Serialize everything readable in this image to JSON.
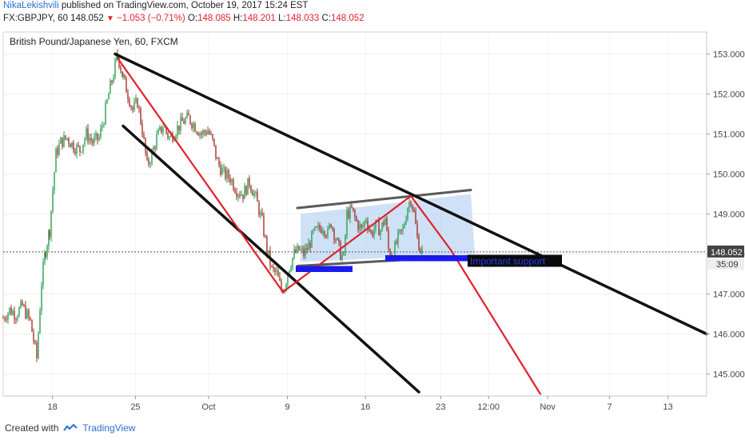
{
  "header": {
    "author": "NikaLekishvili",
    "published_text": "published on TradingView.com, October 19, 2017 15:24 EST",
    "symbol": "FX:GBPJPY, 60",
    "last": "148.052",
    "change": "−1.053 (−0.71%)",
    "open_label": "O:",
    "open": "148.085",
    "high_label": "H:",
    "high": "148.201",
    "low_label": "L:",
    "low": "148.033",
    "close_label": "C:",
    "close": "148.052"
  },
  "chart_data": {
    "type": "candlestick",
    "title": "British Pound/Japanese Yen, 60, FXCM",
    "ylim": [
      144.45,
      153.55
    ],
    "y_ticks": [
      "145.000",
      "146.000",
      "147.000",
      "148.000",
      "149.000",
      "150.000",
      "151.000",
      "152.000",
      "153.000"
    ],
    "x_ticks": [
      "18",
      "25",
      "Oct",
      "9",
      "16",
      "23",
      "12:00",
      "Nov",
      "7",
      "13"
    ],
    "last_price_label": "148.052",
    "countdown_label": "35:09",
    "annotation_text": "Important support",
    "price_path": [
      [
        0,
        146.4
      ],
      [
        8,
        146.6
      ],
      [
        16,
        146.5
      ],
      [
        24,
        146.7
      ],
      [
        34,
        146.3
      ],
      [
        42,
        145.4
      ],
      [
        48,
        147.3
      ],
      [
        53,
        148.1
      ],
      [
        58,
        148.6
      ],
      [
        62,
        149.6
      ],
      [
        66,
        150.5
      ],
      [
        72,
        150.8
      ],
      [
        80,
        150.9
      ],
      [
        88,
        150.7
      ],
      [
        96,
        150.6
      ],
      [
        104,
        151.0
      ],
      [
        112,
        150.8
      ],
      [
        120,
        150.9
      ],
      [
        126,
        151.4
      ],
      [
        132,
        152.0
      ],
      [
        138,
        152.5
      ],
      [
        143,
        153.0
      ],
      [
        150,
        152.4
      ],
      [
        156,
        152.0
      ],
      [
        162,
        151.6
      ],
      [
        168,
        151.8
      ],
      [
        174,
        151.1
      ],
      [
        180,
        150.2
      ],
      [
        186,
        150.5
      ],
      [
        192,
        150.9
      ],
      [
        200,
        151.2
      ],
      [
        208,
        150.9
      ],
      [
        216,
        151.1
      ],
      [
        224,
        151.3
      ],
      [
        232,
        151.4
      ],
      [
        240,
        151.2
      ],
      [
        248,
        151.0
      ],
      [
        256,
        151.1
      ],
      [
        262,
        150.8
      ],
      [
        268,
        150.3
      ],
      [
        276,
        150.0
      ],
      [
        284,
        149.9
      ],
      [
        292,
        149.6
      ],
      [
        300,
        149.5
      ],
      [
        308,
        149.8
      ],
      [
        316,
        149.4
      ],
      [
        324,
        148.8
      ],
      [
        330,
        148.1
      ],
      [
        336,
        147.6
      ],
      [
        342,
        147.5
      ],
      [
        348,
        147.1
      ],
      [
        352,
        147.2
      ],
      [
        358,
        147.7
      ],
      [
        364,
        148.0
      ],
      [
        370,
        148.1
      ],
      [
        376,
        148.0
      ],
      [
        382,
        148.2
      ],
      [
        388,
        148.5
      ],
      [
        394,
        148.6
      ],
      [
        400,
        148.7
      ],
      [
        406,
        148.5
      ],
      [
        410,
        148.8
      ],
      [
        416,
        148.4
      ],
      [
        422,
        148.0
      ],
      [
        426,
        147.9
      ],
      [
        430,
        149.0
      ],
      [
        436,
        149.1
      ],
      [
        442,
        148.8
      ],
      [
        448,
        148.6
      ],
      [
        454,
        148.9
      ],
      [
        460,
        148.5
      ],
      [
        466,
        148.7
      ],
      [
        472,
        148.6
      ],
      [
        478,
        148.9
      ],
      [
        482,
        148.1
      ],
      [
        488,
        148.0
      ],
      [
        494,
        148.4
      ],
      [
        500,
        148.6
      ],
      [
        506,
        149.2
      ],
      [
        510,
        149.4
      ],
      [
        514,
        149.0
      ],
      [
        518,
        148.4
      ],
      [
        522,
        148.1
      ],
      [
        526,
        148.05
      ]
    ],
    "drawings": {
      "channel_upper": {
        "color": "#111111",
        "from": [
          140,
          153.0
        ],
        "to": [
          880,
          146.0
        ]
      },
      "channel_lower": {
        "color": "#111111",
        "from": [
          150,
          151.2
        ],
        "to": [
          520,
          144.55
        ]
      },
      "red_swing_1": {
        "color": "#e0212b",
        "from": [
          143,
          152.9
        ],
        "to": [
          350,
          147.05
        ]
      },
      "red_swing_2": {
        "color": "#e0212b",
        "from": [
          350,
          147.05
        ],
        "to": [
          510,
          149.45
        ]
      },
      "red_swing_3": {
        "color": "#e0212b",
        "from": [
          510,
          149.45
        ],
        "to": [
          560,
          148.1
        ]
      },
      "red_projection": {
        "color": "#e0212b",
        "from": [
          560,
          148.1
        ],
        "to": [
          672,
          144.5
        ]
      },
      "flag_top": {
        "color": "#5a5a5a",
        "from": [
          368,
          149.15
        ],
        "to": [
          585,
          149.6
        ]
      },
      "flag_bottom": {
        "color": "#5a5a5a",
        "from": [
          368,
          147.7
        ],
        "to": [
          585,
          147.95
        ]
      },
      "flag_fill": {
        "color": "#a8c8ef",
        "points": [
          [
            372,
            149.0
          ],
          [
            585,
            149.5
          ],
          [
            590,
            148.0
          ],
          [
            372,
            147.8
          ]
        ]
      },
      "support_band_1": {
        "color": "#1a1aee",
        "x": [
          366,
          437
        ],
        "y": [
          147.55,
          147.7
        ]
      },
      "support_band_2": {
        "color": "#1a1aee",
        "x": [
          478,
          585
        ],
        "y": [
          147.82,
          147.97
        ]
      }
    }
  }
}
